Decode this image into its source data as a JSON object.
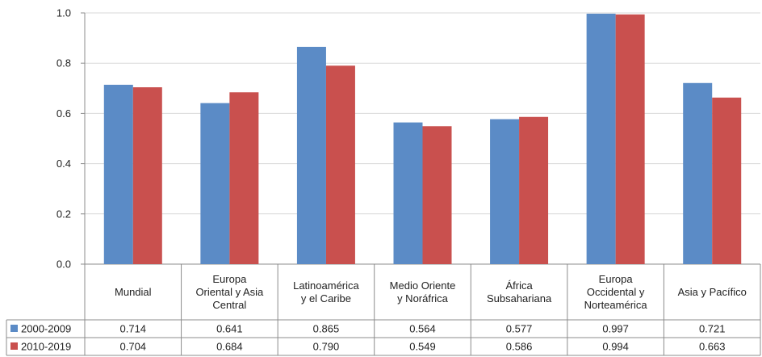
{
  "chart_data": {
    "type": "bar",
    "categories": [
      [
        "Mundial"
      ],
      [
        "Europa",
        "Oriental y Asia",
        "Central"
      ],
      [
        "Latinoamérica",
        "y el Caribe"
      ],
      [
        "Medio Oriente",
        "y Noráfrica"
      ],
      [
        "África",
        "Subsahariana"
      ],
      [
        "Europa",
        "Occidental y",
        "Norteamérica"
      ],
      [
        "Asia y Pacífico"
      ]
    ],
    "series": [
      {
        "name": "2000-2009",
        "color": "#5B8BC6",
        "values": [
          0.714,
          0.641,
          0.865,
          0.564,
          0.577,
          0.997,
          0.721
        ],
        "labels": [
          "0.714",
          "0.641",
          "0.865",
          "0.564",
          "0.577",
          "0.997",
          "0.721"
        ]
      },
      {
        "name": "2010-2019",
        "color": "#C9504E",
        "values": [
          0.704,
          0.684,
          0.79,
          0.549,
          0.586,
          0.994,
          0.663
        ],
        "labels": [
          "0.704",
          "0.684",
          "0.790",
          "0.549",
          "0.586",
          "0.994",
          "0.663"
        ]
      }
    ],
    "ylim": [
      0,
      1.0
    ],
    "yticks": [
      "0.0",
      "0.2",
      "0.4",
      "0.6",
      "0.8",
      "1.0"
    ],
    "grid": true,
    "legend": "data-table"
  }
}
